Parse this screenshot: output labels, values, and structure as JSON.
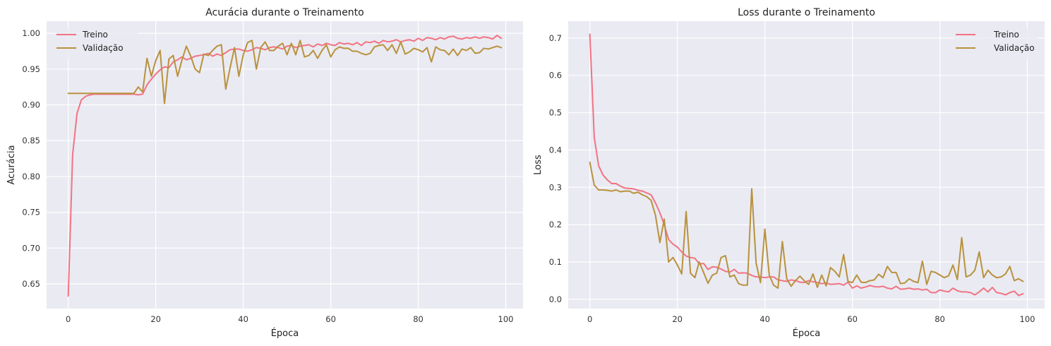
{
  "colors": {
    "background": "#ffffff",
    "plot_background": "#eaeaf2",
    "grid": "#ffffff",
    "train": "#f27383",
    "validation": "#b8923d"
  },
  "chart_data": [
    {
      "type": "line",
      "title": "Acurácia durante o Treinamento",
      "xlabel": "Época",
      "ylabel": "Acurácia",
      "xlim": [
        -4.95,
        103.95
      ],
      "ylim": [
        0.6155,
        1.0169
      ],
      "xticks": [
        0,
        20,
        40,
        60,
        80,
        100
      ],
      "yticks": [
        0.65,
        0.7,
        0.75,
        0.8,
        0.85,
        0.9,
        0.95,
        1.0
      ],
      "ytick_labels": [
        "0.65",
        "0.70",
        "0.75",
        "0.80",
        "0.85",
        "0.90",
        "0.95",
        "1.00"
      ],
      "grid": true,
      "legend": "top-left",
      "series": [
        {
          "name": "Treino",
          "color": "#f27383",
          "x": [
            0,
            1,
            2,
            3,
            4,
            5,
            6,
            7,
            8,
            9,
            10,
            11,
            12,
            13,
            14,
            15,
            16,
            17,
            18,
            19,
            20,
            21,
            22,
            23,
            24,
            25,
            26,
            27,
            28,
            29,
            30,
            31,
            32,
            33,
            34,
            35,
            36,
            37,
            38,
            39,
            40,
            41,
            42,
            43,
            44,
            45,
            46,
            47,
            48,
            49,
            50,
            51,
            52,
            53,
            54,
            55,
            56,
            57,
            58,
            59,
            60,
            61,
            62,
            63,
            64,
            65,
            66,
            67,
            68,
            69,
            70,
            71,
            72,
            73,
            74,
            75,
            76,
            77,
            78,
            79,
            80,
            81,
            82,
            83,
            84,
            85,
            86,
            87,
            88,
            89,
            90,
            91,
            92,
            93,
            94,
            95,
            96,
            97,
            98,
            99
          ],
          "y": [
            0.633,
            0.83,
            0.888,
            0.907,
            0.912,
            0.914,
            0.915,
            0.915,
            0.915,
            0.915,
            0.915,
            0.915,
            0.915,
            0.915,
            0.915,
            0.915,
            0.914,
            0.915,
            0.928,
            0.936,
            0.943,
            0.949,
            0.953,
            0.952,
            0.96,
            0.963,
            0.967,
            0.963,
            0.965,
            0.968,
            0.969,
            0.97,
            0.972,
            0.968,
            0.971,
            0.969,
            0.973,
            0.977,
            0.978,
            0.978,
            0.976,
            0.975,
            0.977,
            0.98,
            0.979,
            0.977,
            0.98,
            0.981,
            0.98,
            0.978,
            0.982,
            0.983,
            0.98,
            0.982,
            0.983,
            0.984,
            0.981,
            0.985,
            0.983,
            0.986,
            0.984,
            0.983,
            0.987,
            0.985,
            0.986,
            0.984,
            0.987,
            0.983,
            0.988,
            0.987,
            0.989,
            0.986,
            0.99,
            0.988,
            0.989,
            0.991,
            0.988,
            0.99,
            0.991,
            0.989,
            0.993,
            0.99,
            0.994,
            0.993,
            0.991,
            0.994,
            0.992,
            0.995,
            0.996,
            0.993,
            0.992,
            0.994,
            0.993,
            0.995,
            0.993,
            0.995,
            0.994,
            0.992,
            0.997,
            0.993
          ]
        },
        {
          "name": "Validação",
          "color": "#b8923d",
          "x": [
            0,
            1,
            2,
            3,
            4,
            5,
            6,
            7,
            8,
            9,
            10,
            11,
            12,
            13,
            14,
            15,
            16,
            17,
            18,
            19,
            20,
            21,
            22,
            23,
            24,
            25,
            26,
            27,
            28,
            29,
            30,
            31,
            32,
            33,
            34,
            35,
            36,
            37,
            38,
            39,
            40,
            41,
            42,
            43,
            44,
            45,
            46,
            47,
            48,
            49,
            50,
            51,
            52,
            53,
            54,
            55,
            56,
            57,
            58,
            59,
            60,
            61,
            62,
            63,
            64,
            65,
            66,
            67,
            68,
            69,
            70,
            71,
            72,
            73,
            74,
            75,
            76,
            77,
            78,
            79,
            80,
            81,
            82,
            83,
            84,
            85,
            86,
            87,
            88,
            89,
            90,
            91,
            92,
            93,
            94,
            95,
            96,
            97,
            98,
            99
          ],
          "y": [
            0.916,
            0.916,
            0.916,
            0.916,
            0.916,
            0.916,
            0.916,
            0.916,
            0.916,
            0.916,
            0.916,
            0.916,
            0.916,
            0.916,
            0.916,
            0.916,
            0.925,
            0.918,
            0.965,
            0.94,
            0.962,
            0.976,
            0.902,
            0.964,
            0.969,
            0.94,
            0.963,
            0.982,
            0.968,
            0.95,
            0.945,
            0.971,
            0.969,
            0.976,
            0.982,
            0.984,
            0.922,
            0.952,
            0.98,
            0.94,
            0.97,
            0.987,
            0.99,
            0.95,
            0.98,
            0.988,
            0.976,
            0.976,
            0.982,
            0.986,
            0.97,
            0.986,
            0.97,
            0.99,
            0.967,
            0.969,
            0.976,
            0.965,
            0.976,
            0.984,
            0.967,
            0.977,
            0.981,
            0.979,
            0.979,
            0.975,
            0.975,
            0.972,
            0.97,
            0.972,
            0.981,
            0.983,
            0.984,
            0.976,
            0.984,
            0.972,
            0.988,
            0.971,
            0.974,
            0.979,
            0.977,
            0.974,
            0.98,
            0.96,
            0.981,
            0.977,
            0.976,
            0.97,
            0.978,
            0.969,
            0.978,
            0.976,
            0.98,
            0.972,
            0.973,
            0.979,
            0.978,
            0.98,
            0.982,
            0.98
          ]
        }
      ]
    },
    {
      "type": "line",
      "title": "Loss durante o Treinamento",
      "xlabel": "Época",
      "ylabel": "Loss",
      "xlim": [
        -4.95,
        103.95
      ],
      "ylim": [
        -0.0248,
        0.7451
      ],
      "xticks": [
        0,
        20,
        40,
        60,
        80,
        100
      ],
      "yticks": [
        0.0,
        0.1,
        0.2,
        0.3,
        0.4,
        0.5,
        0.6,
        0.7
      ],
      "ytick_labels": [
        "0.0",
        "0.1",
        "0.2",
        "0.3",
        "0.4",
        "0.5",
        "0.6",
        "0.7"
      ],
      "grid": true,
      "legend": "top-right",
      "series": [
        {
          "name": "Treino",
          "color": "#f27383",
          "x": [
            0,
            1,
            2,
            3,
            4,
            5,
            6,
            7,
            8,
            9,
            10,
            11,
            12,
            13,
            14,
            15,
            16,
            17,
            18,
            19,
            20,
            21,
            22,
            23,
            24,
            25,
            26,
            27,
            28,
            29,
            30,
            31,
            32,
            33,
            34,
            35,
            36,
            37,
            38,
            39,
            40,
            41,
            42,
            43,
            44,
            45,
            46,
            47,
            48,
            49,
            50,
            51,
            52,
            53,
            54,
            55,
            56,
            57,
            58,
            59,
            60,
            61,
            62,
            63,
            64,
            65,
            66,
            67,
            68,
            69,
            70,
            71,
            72,
            73,
            74,
            75,
            76,
            77,
            78,
            79,
            80,
            81,
            82,
            83,
            84,
            85,
            86,
            87,
            88,
            89,
            90,
            91,
            92,
            93,
            94,
            95,
            96,
            97,
            98,
            99
          ],
          "y": [
            0.71,
            0.435,
            0.358,
            0.333,
            0.32,
            0.31,
            0.31,
            0.303,
            0.298,
            0.297,
            0.296,
            0.292,
            0.29,
            0.285,
            0.28,
            0.258,
            0.232,
            0.2,
            0.16,
            0.148,
            0.14,
            0.127,
            0.116,
            0.112,
            0.11,
            0.095,
            0.096,
            0.08,
            0.087,
            0.086,
            0.081,
            0.075,
            0.073,
            0.08,
            0.07,
            0.071,
            0.07,
            0.064,
            0.06,
            0.06,
            0.058,
            0.06,
            0.06,
            0.052,
            0.05,
            0.048,
            0.052,
            0.05,
            0.046,
            0.045,
            0.05,
            0.047,
            0.045,
            0.042,
            0.044,
            0.04,
            0.041,
            0.042,
            0.038,
            0.046,
            0.03,
            0.036,
            0.03,
            0.033,
            0.037,
            0.034,
            0.033,
            0.035,
            0.03,
            0.028,
            0.035,
            0.027,
            0.028,
            0.03,
            0.027,
            0.028,
            0.025,
            0.027,
            0.018,
            0.018,
            0.025,
            0.022,
            0.02,
            0.03,
            0.023,
            0.02,
            0.02,
            0.018,
            0.012,
            0.02,
            0.03,
            0.02,
            0.032,
            0.018,
            0.016,
            0.012,
            0.018,
            0.022,
            0.01,
            0.015
          ]
        },
        {
          "name": "Validação",
          "color": "#b8923d",
          "x": [
            0,
            1,
            2,
            3,
            4,
            5,
            6,
            7,
            8,
            9,
            10,
            11,
            12,
            13,
            14,
            15,
            16,
            17,
            18,
            19,
            20,
            21,
            22,
            23,
            24,
            25,
            26,
            27,
            28,
            29,
            30,
            31,
            32,
            33,
            34,
            35,
            36,
            37,
            38,
            39,
            40,
            41,
            42,
            43,
            44,
            45,
            46,
            47,
            48,
            49,
            50,
            51,
            52,
            53,
            54,
            55,
            56,
            57,
            58,
            59,
            60,
            61,
            62,
            63,
            64,
            65,
            66,
            67,
            68,
            69,
            70,
            71,
            72,
            73,
            74,
            75,
            76,
            77,
            78,
            79,
            80,
            81,
            82,
            83,
            84,
            85,
            86,
            87,
            88,
            89,
            90,
            91,
            92,
            93,
            94,
            95,
            96,
            97,
            98,
            99
          ],
          "y": [
            0.367,
            0.306,
            0.293,
            0.293,
            0.292,
            0.29,
            0.293,
            0.288,
            0.29,
            0.29,
            0.284,
            0.287,
            0.28,
            0.275,
            0.265,
            0.225,
            0.152,
            0.215,
            0.1,
            0.112,
            0.092,
            0.068,
            0.235,
            0.07,
            0.058,
            0.1,
            0.072,
            0.043,
            0.065,
            0.07,
            0.112,
            0.117,
            0.06,
            0.065,
            0.042,
            0.038,
            0.038,
            0.296,
            0.097,
            0.045,
            0.188,
            0.065,
            0.038,
            0.03,
            0.155,
            0.055,
            0.035,
            0.05,
            0.062,
            0.05,
            0.04,
            0.068,
            0.032,
            0.065,
            0.036,
            0.085,
            0.075,
            0.06,
            0.12,
            0.048,
            0.045,
            0.065,
            0.046,
            0.045,
            0.05,
            0.052,
            0.067,
            0.058,
            0.088,
            0.072,
            0.072,
            0.042,
            0.044,
            0.055,
            0.048,
            0.045,
            0.102,
            0.04,
            0.075,
            0.072,
            0.065,
            0.058,
            0.063,
            0.092,
            0.053,
            0.165,
            0.06,
            0.065,
            0.078,
            0.127,
            0.058,
            0.078,
            0.065,
            0.058,
            0.06,
            0.068,
            0.088,
            0.05,
            0.055,
            0.048
          ]
        }
      ]
    }
  ]
}
